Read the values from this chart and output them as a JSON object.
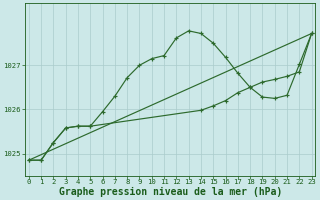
{
  "title": "Graphe pression niveau de la mer (hPa)",
  "bg_color": "#cce8e8",
  "grid_color": "#aacccc",
  "line_color": "#2d6a2d",
  "xlim": [
    -0.3,
    23.3
  ],
  "ylim": [
    1024.5,
    1028.4
  ],
  "yticks": [
    1025,
    1026,
    1027
  ],
  "xticks": [
    0,
    1,
    2,
    3,
    4,
    5,
    6,
    7,
    8,
    9,
    10,
    11,
    12,
    13,
    14,
    15,
    16,
    17,
    18,
    19,
    20,
    21,
    22,
    23
  ],
  "curve1_x": [
    0,
    1,
    2,
    3,
    4,
    5,
    6,
    7,
    8,
    9,
    10,
    11,
    12,
    13,
    14,
    15,
    16,
    17,
    18,
    19,
    20,
    21,
    22,
    23
  ],
  "curve1_y": [
    1024.85,
    1024.85,
    1025.25,
    1025.58,
    1025.62,
    1025.62,
    1025.95,
    1026.3,
    1026.72,
    1027.0,
    1027.15,
    1027.22,
    1027.62,
    1027.78,
    1027.72,
    1027.5,
    1027.18,
    1026.82,
    1026.5,
    1026.28,
    1026.25,
    1026.32,
    1027.02,
    1027.72
  ],
  "curve2_x": [
    0,
    1,
    2,
    3,
    4,
    5,
    14,
    15,
    16,
    17,
    18,
    19,
    20,
    21,
    22,
    23
  ],
  "curve2_y": [
    1024.85,
    1024.85,
    1025.25,
    1025.58,
    1025.62,
    1025.62,
    1025.98,
    1026.08,
    1026.2,
    1026.38,
    1026.5,
    1026.62,
    1026.68,
    1026.75,
    1026.85,
    1027.72
  ],
  "trend_x": [
    0,
    23
  ],
  "trend_y": [
    1024.85,
    1027.72
  ],
  "font_color": "#1a5c1a",
  "title_fontsize": 7.0,
  "tick_fontsize": 5.2
}
